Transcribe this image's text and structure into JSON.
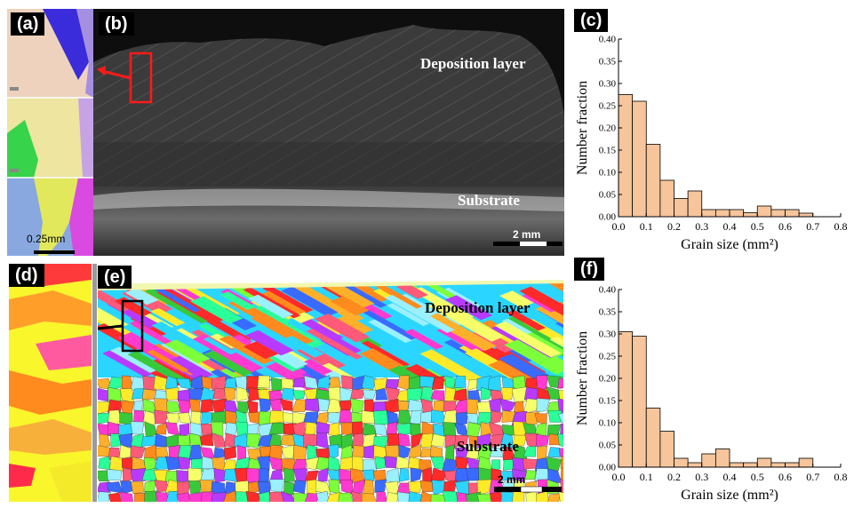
{
  "panels": {
    "a": {
      "label": "(a)",
      "scale": "0.25mm"
    },
    "b": {
      "label": "(b)",
      "top_label": "Deposition layer",
      "bottom_label": "Substrate",
      "scale": "2 mm"
    },
    "c": {
      "label": "(c)"
    },
    "d": {
      "label": "(d)"
    },
    "e": {
      "label": "(e)",
      "top_label": "Deposition layer",
      "bottom_label": "Substrate",
      "scale": "2 mm"
    },
    "f": {
      "label": "(f)"
    }
  },
  "chart_data": [
    {
      "panel": "c",
      "type": "bar",
      "xlabel": "Grain size (mm²)",
      "ylabel": "Number fraction",
      "xlim": [
        0.0,
        0.8
      ],
      "ylim": [
        0.0,
        0.4
      ],
      "xticks": [
        "0.0",
        "0.1",
        "0.2",
        "0.3",
        "0.4",
        "0.5",
        "0.6",
        "0.7",
        "0.8"
      ],
      "yticks": [
        "0.00",
        "0.05",
        "0.10",
        "0.15",
        "0.20",
        "0.25",
        "0.30",
        "0.35",
        "0.40"
      ],
      "bar_width": 0.05,
      "x": [
        0.025,
        0.075,
        0.125,
        0.175,
        0.225,
        0.275,
        0.325,
        0.375,
        0.425,
        0.475,
        0.525,
        0.575,
        0.625,
        0.675
      ],
      "values": [
        0.275,
        0.26,
        0.163,
        0.082,
        0.041,
        0.058,
        0.016,
        0.016,
        0.016,
        0.009,
        0.024,
        0.016,
        0.016,
        0.008
      ],
      "bar_color": "#f6c59b"
    },
    {
      "panel": "f",
      "type": "bar",
      "xlabel": "Grain size (mm²)",
      "ylabel": "Number fraction",
      "xlim": [
        0.0,
        0.8
      ],
      "ylim": [
        0.0,
        0.4
      ],
      "xticks": [
        "0.0",
        "0.1",
        "0.2",
        "0.3",
        "0.4",
        "0.5",
        "0.6",
        "0.7",
        "0.8"
      ],
      "yticks": [
        "0.00",
        "0.05",
        "0.10",
        "0.15",
        "0.20",
        "0.25",
        "0.30",
        "0.35",
        "0.40"
      ],
      "bar_width": 0.05,
      "x": [
        0.025,
        0.075,
        0.125,
        0.175,
        0.225,
        0.275,
        0.325,
        0.375,
        0.425,
        0.475,
        0.525,
        0.575,
        0.625,
        0.675
      ],
      "values": [
        0.305,
        0.295,
        0.133,
        0.081,
        0.02,
        0.01,
        0.03,
        0.041,
        0.01,
        0.01,
        0.02,
        0.01,
        0.01,
        0.02
      ],
      "bar_color": "#f6c59b"
    }
  ]
}
